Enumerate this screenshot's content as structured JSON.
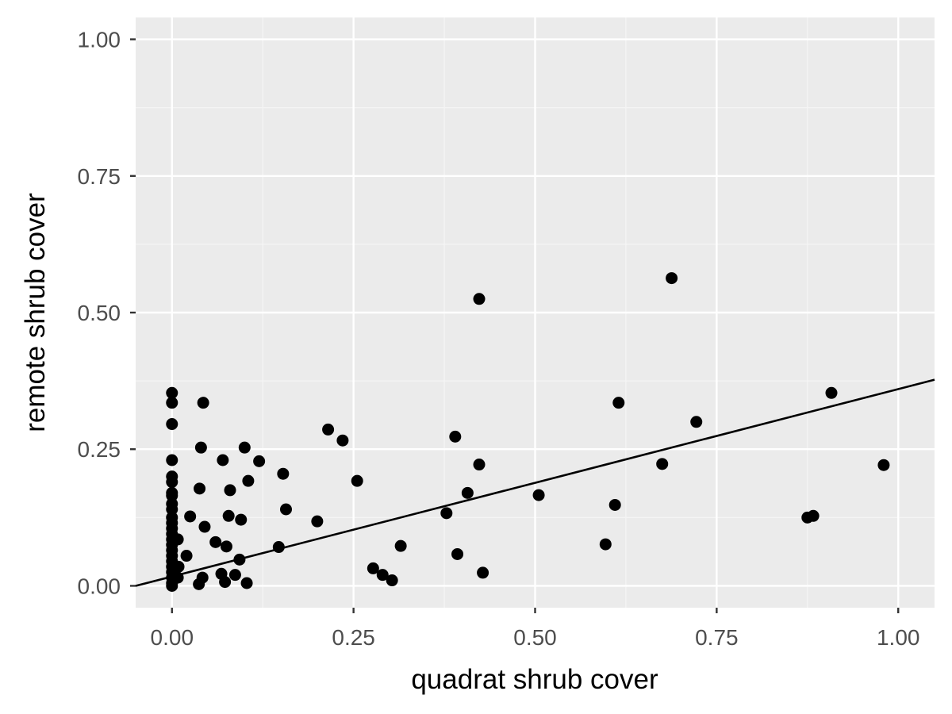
{
  "chart_data": {
    "type": "scatter",
    "title": "",
    "xlabel": "quadrat shrub cover",
    "ylabel": "remote shrub cover",
    "xlim": [
      -0.05,
      1.05
    ],
    "ylim": [
      -0.04,
      1.04
    ],
    "x_ticks": [
      0.0,
      0.25,
      0.5,
      0.75,
      1.0
    ],
    "y_ticks": [
      0.0,
      0.25,
      0.5,
      0.75,
      1.0
    ],
    "x_tick_labels": [
      "0.00",
      "0.25",
      "0.50",
      "0.75",
      "1.00"
    ],
    "y_tick_labels": [
      "0.00",
      "0.25",
      "0.50",
      "0.75",
      "1.00"
    ],
    "grid": true,
    "legend": "none",
    "colors": {
      "panel_background": "#ebebeb",
      "grid_major": "#ffffff",
      "grid_minor": "#f5f5f5",
      "points": "#000000",
      "fit_line": "#000000"
    },
    "fit_line": {
      "intercept": 0.017,
      "slope": 0.343
    },
    "points": [
      [
        0.0,
        0.353
      ],
      [
        0.0,
        0.335
      ],
      [
        0.0,
        0.296
      ],
      [
        0.0,
        0.23
      ],
      [
        0.0,
        0.2
      ],
      [
        0.0,
        0.19
      ],
      [
        0.0,
        0.17
      ],
      [
        0.0,
        0.165
      ],
      [
        0.0,
        0.15
      ],
      [
        0.0,
        0.14
      ],
      [
        0.0,
        0.125
      ],
      [
        0.0,
        0.115
      ],
      [
        0.0,
        0.105
      ],
      [
        0.0,
        0.095
      ],
      [
        0.0,
        0.085
      ],
      [
        0.0,
        0.075
      ],
      [
        0.0,
        0.065
      ],
      [
        0.0,
        0.055
      ],
      [
        0.0,
        0.045
      ],
      [
        0.0,
        0.035
      ],
      [
        0.0,
        0.025
      ],
      [
        0.0,
        0.015
      ],
      [
        0.0,
        0.005
      ],
      [
        0.0,
        0.0
      ],
      [
        0.008,
        0.085
      ],
      [
        0.009,
        0.035
      ],
      [
        0.008,
        0.015
      ],
      [
        0.02,
        0.055
      ],
      [
        0.025,
        0.127
      ],
      [
        0.037,
        0.003
      ],
      [
        0.038,
        0.178
      ],
      [
        0.04,
        0.253
      ],
      [
        0.042,
        0.015
      ],
      [
        0.043,
        0.335
      ],
      [
        0.045,
        0.108
      ],
      [
        0.06,
        0.08
      ],
      [
        0.068,
        0.022
      ],
      [
        0.07,
        0.23
      ],
      [
        0.073,
        0.007
      ],
      [
        0.075,
        0.072
      ],
      [
        0.078,
        0.128
      ],
      [
        0.08,
        0.175
      ],
      [
        0.087,
        0.02
      ],
      [
        0.093,
        0.048
      ],
      [
        0.095,
        0.121
      ],
      [
        0.1,
        0.253
      ],
      [
        0.103,
        0.005
      ],
      [
        0.105,
        0.192
      ],
      [
        0.12,
        0.228
      ],
      [
        0.147,
        0.071
      ],
      [
        0.153,
        0.205
      ],
      [
        0.157,
        0.14
      ],
      [
        0.2,
        0.118
      ],
      [
        0.215,
        0.286
      ],
      [
        0.235,
        0.266
      ],
      [
        0.255,
        0.192
      ],
      [
        0.277,
        0.032
      ],
      [
        0.29,
        0.02
      ],
      [
        0.303,
        0.01
      ],
      [
        0.315,
        0.073
      ],
      [
        0.378,
        0.133
      ],
      [
        0.39,
        0.273
      ],
      [
        0.393,
        0.058
      ],
      [
        0.407,
        0.17
      ],
      [
        0.423,
        0.525
      ],
      [
        0.423,
        0.222
      ],
      [
        0.428,
        0.024
      ],
      [
        0.505,
        0.166
      ],
      [
        0.597,
        0.076
      ],
      [
        0.61,
        0.148
      ],
      [
        0.615,
        0.335
      ],
      [
        0.675,
        0.223
      ],
      [
        0.688,
        0.563
      ],
      [
        0.722,
        0.3
      ],
      [
        0.875,
        0.125
      ],
      [
        0.883,
        0.128
      ],
      [
        0.908,
        0.353
      ],
      [
        0.98,
        0.221
      ]
    ]
  }
}
